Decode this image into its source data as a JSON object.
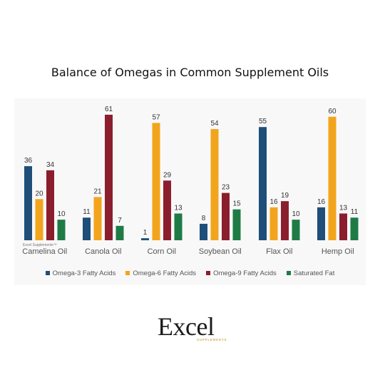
{
  "title": "Balance of Omegas in Common Supplement Oils",
  "chart_data": {
    "type": "bar",
    "title": "Balance of Omegas in Common Supplement Oils",
    "categories": [
      "Camelina Oil",
      "Canola Oil",
      "Corn Oil",
      "Soybean Oil",
      "Flax Oil",
      "Hemp Oil"
    ],
    "category_note": {
      "index": 0,
      "text": "Excel Supplements™"
    },
    "series": [
      {
        "name": "Omega-3 Fatty Acids",
        "color": "#1f4e79",
        "values": [
          36,
          11,
          1,
          8,
          55,
          16
        ]
      },
      {
        "name": "Omega-6 Fatty Acids",
        "color": "#f2a51c",
        "values": [
          20,
          21,
          57,
          54,
          16,
          60
        ]
      },
      {
        "name": "Omega-9 Fatty Acids",
        "color": "#8b1e2d",
        "values": [
          34,
          61,
          29,
          23,
          19,
          13
        ]
      },
      {
        "name": "Saturated Fat",
        "color": "#1e7b45",
        "values": [
          10,
          7,
          13,
          15,
          10,
          11
        ]
      }
    ],
    "ylim": [
      0,
      62
    ],
    "grid": false,
    "legend": "bottom"
  },
  "brand": {
    "word": "Excel",
    "subtitle": "SUPPLEMENTS"
  }
}
